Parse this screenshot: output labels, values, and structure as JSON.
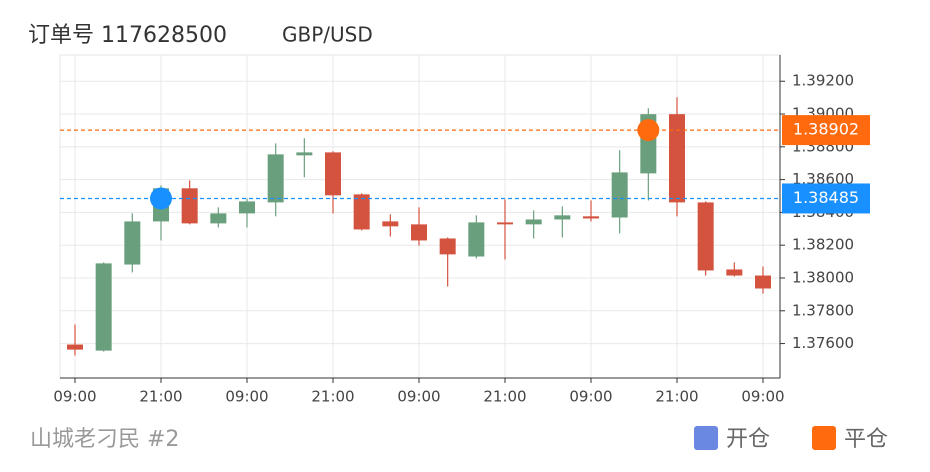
{
  "chart_data": {
    "type": "candlestick",
    "title": "订单号 117628500",
    "symbol": "GBP/USD",
    "footer": "山城老刁民 #2",
    "categories": [
      "09:00",
      null,
      null,
      "21:00",
      null,
      null,
      "09:00",
      null,
      null,
      "21:00",
      null,
      null,
      "09:00",
      null,
      null,
      "21:00",
      null,
      null,
      "09:00",
      null,
      null,
      "21:00",
      null,
      null,
      "09:00"
    ],
    "open": [
      1.37594,
      1.37557,
      1.38082,
      1.38345,
      1.38547,
      1.38333,
      1.38394,
      1.38461,
      1.38748,
      1.38766,
      1.3851,
      1.38345,
      1.38327,
      1.38241,
      1.38131,
      1.38339,
      1.38327,
      1.38357,
      1.38376,
      1.38369,
      1.38638,
      1.38999,
      1.38461,
      1.38052,
      1.38015
    ],
    "high": [
      1.37716,
      1.38095,
      1.38394,
      1.38565,
      1.38595,
      1.38431,
      1.38486,
      1.38821,
      1.38852,
      1.38773,
      1.38516,
      1.38388,
      1.38431,
      1.38247,
      1.38382,
      1.38479,
      1.38412,
      1.38437,
      1.38473,
      1.38779,
      1.39035,
      1.39102,
      1.38467,
      1.38095,
      1.3807
    ],
    "low": [
      1.37527,
      1.37551,
      1.38034,
      1.38229,
      1.38327,
      1.38308,
      1.38308,
      1.38376,
      1.38614,
      1.38394,
      1.3829,
      1.38253,
      1.38198,
      1.37948,
      1.38119,
      1.38113,
      1.38241,
      1.38247,
      1.38345,
      1.38272,
      1.38473,
      1.38376,
      1.38015,
      1.38009,
      1.37905
    ],
    "close": [
      1.37563,
      1.38089,
      1.38345,
      1.38547,
      1.38333,
      1.38394,
      1.38467,
      1.38754,
      1.38766,
      1.38504,
      1.38296,
      1.38315,
      1.38229,
      1.38144,
      1.38339,
      1.38327,
      1.38357,
      1.38382,
      1.38363,
      1.38644,
      1.38999,
      1.38461,
      1.38046,
      1.38015,
      1.37936
    ],
    "up_color": "#6a9f7e",
    "down_color": "#d4533f",
    "series": [
      {
        "name": "开仓",
        "color": "#1890ff",
        "legend_color": "#6b88e0",
        "values": [
          null,
          null,
          null,
          1.38485,
          null,
          null,
          null,
          null,
          null,
          null,
          null,
          null,
          null,
          null,
          null,
          null,
          null,
          null,
          null,
          null,
          null,
          null,
          null,
          null,
          null
        ]
      },
      {
        "name": "平仓",
        "color": "#ff6a0e",
        "legend_color": "#ff6a0e",
        "values": [
          null,
          null,
          null,
          null,
          null,
          null,
          null,
          null,
          null,
          null,
          null,
          null,
          null,
          null,
          null,
          null,
          null,
          null,
          null,
          null,
          1.38902,
          null,
          null,
          null,
          null
        ]
      }
    ],
    "ylim": [
      1.3739,
      1.3936
    ],
    "yticks": [
      {
        "value": 1.376,
        "label": "1.37600"
      },
      {
        "value": 1.378,
        "label": "1.37800"
      },
      {
        "value": 1.38,
        "label": "1.38000"
      },
      {
        "value": 1.382,
        "label": "1.38200"
      },
      {
        "value": 1.384,
        "label": "1.38400"
      },
      {
        "value": 1.386,
        "label": "1.38600"
      },
      {
        "value": 1.388,
        "label": "1.38800"
      },
      {
        "value": 1.39,
        "label": "1.39000"
      },
      {
        "value": 1.392,
        "label": "1.39200"
      }
    ],
    "grid": true
  }
}
